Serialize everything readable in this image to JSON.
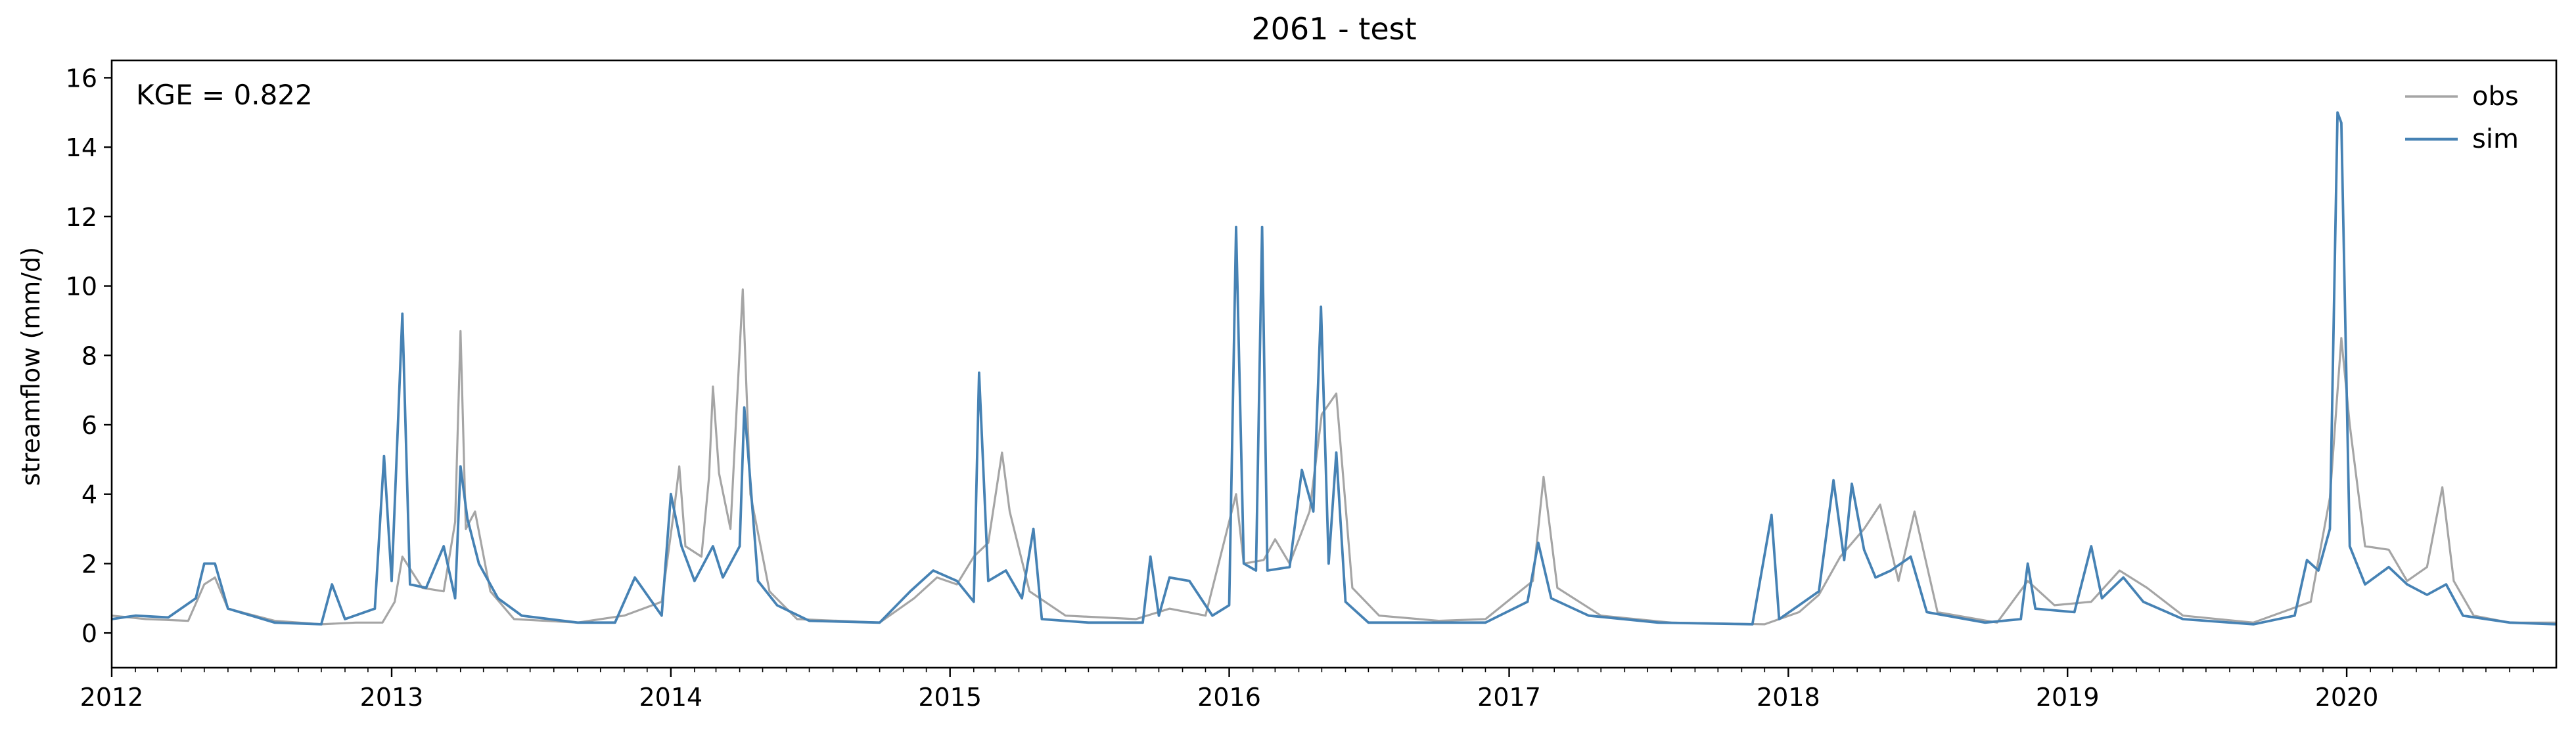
{
  "chart_data": {
    "type": "line",
    "title": "2061 - test",
    "xlabel": "",
    "ylabel": "streamflow (mm/d)",
    "annotation": "KGE = 0.822",
    "xlim": [
      "2012-01-01",
      "2020-10-01"
    ],
    "ylim": [
      -1,
      16.5
    ],
    "x_ticks": [
      "2012",
      "2013",
      "2014",
      "2015",
      "2016",
      "2017",
      "2018",
      "2019",
      "2020"
    ],
    "y_ticks": [
      0,
      2,
      4,
      6,
      8,
      10,
      12,
      14,
      16
    ],
    "grid": false,
    "legend_position": "top-right",
    "series": [
      {
        "name": "obs",
        "color": "#a5a5a5",
        "points": [
          [
            "2012-01-01",
            0.5
          ],
          [
            "2012-02-15",
            0.4
          ],
          [
            "2012-04-10",
            0.35
          ],
          [
            "2012-05-01",
            1.4
          ],
          [
            "2012-05-15",
            1.6
          ],
          [
            "2012-06-01",
            0.7
          ],
          [
            "2012-08-01",
            0.35
          ],
          [
            "2012-10-01",
            0.25
          ],
          [
            "2012-11-15",
            0.3
          ],
          [
            "2012-12-20",
            0.3
          ],
          [
            "2013-01-05",
            0.9
          ],
          [
            "2013-01-15",
            2.2
          ],
          [
            "2013-02-10",
            1.3
          ],
          [
            "2013-03-10",
            1.2
          ],
          [
            "2013-03-25",
            3.2
          ],
          [
            "2013-04-01",
            8.7
          ],
          [
            "2013-04-08",
            3.0
          ],
          [
            "2013-04-20",
            3.5
          ],
          [
            "2013-05-10",
            1.2
          ],
          [
            "2013-06-10",
            0.4
          ],
          [
            "2013-09-01",
            0.3
          ],
          [
            "2013-11-01",
            0.5
          ],
          [
            "2013-12-20",
            0.9
          ],
          [
            "2014-01-05",
            3.5
          ],
          [
            "2014-01-12",
            4.8
          ],
          [
            "2014-01-20",
            2.5
          ],
          [
            "2014-02-10",
            2.2
          ],
          [
            "2014-02-20",
            4.5
          ],
          [
            "2014-02-25",
            7.1
          ],
          [
            "2014-03-05",
            4.6
          ],
          [
            "2014-03-20",
            3.0
          ],
          [
            "2014-04-05",
            9.9
          ],
          [
            "2014-04-15",
            4.0
          ],
          [
            "2014-05-10",
            1.2
          ],
          [
            "2014-06-15",
            0.4
          ],
          [
            "2014-10-01",
            0.3
          ],
          [
            "2014-11-15",
            1.0
          ],
          [
            "2014-12-15",
            1.6
          ],
          [
            "2015-01-10",
            1.4
          ],
          [
            "2015-02-01",
            2.2
          ],
          [
            "2015-02-20",
            2.6
          ],
          [
            "2015-03-10",
            5.2
          ],
          [
            "2015-03-20",
            3.5
          ],
          [
            "2015-04-15",
            1.2
          ],
          [
            "2015-06-01",
            0.5
          ],
          [
            "2015-09-01",
            0.4
          ],
          [
            "2015-10-15",
            0.7
          ],
          [
            "2015-12-01",
            0.5
          ],
          [
            "2016-01-10",
            4.0
          ],
          [
            "2016-01-20",
            2.0
          ],
          [
            "2016-02-15",
            2.1
          ],
          [
            "2016-03-01",
            2.7
          ],
          [
            "2016-03-20",
            2.0
          ],
          [
            "2016-04-15",
            3.5
          ],
          [
            "2016-05-01",
            6.3
          ],
          [
            "2016-05-20",
            6.9
          ],
          [
            "2016-06-10",
            1.3
          ],
          [
            "2016-07-15",
            0.5
          ],
          [
            "2016-10-01",
            0.35
          ],
          [
            "2016-12-01",
            0.4
          ],
          [
            "2017-02-01",
            1.5
          ],
          [
            "2017-02-15",
            4.5
          ],
          [
            "2017-03-05",
            1.3
          ],
          [
            "2017-05-01",
            0.5
          ],
          [
            "2017-08-01",
            0.3
          ],
          [
            "2017-12-01",
            0.25
          ],
          [
            "2018-01-15",
            0.6
          ],
          [
            "2018-02-10",
            1.1
          ],
          [
            "2018-03-10",
            2.2
          ],
          [
            "2018-04-10",
            3.0
          ],
          [
            "2018-05-01",
            3.7
          ],
          [
            "2018-05-25",
            1.5
          ],
          [
            "2018-06-15",
            3.5
          ],
          [
            "2018-07-15",
            0.6
          ],
          [
            "2018-10-01",
            0.3
          ],
          [
            "2018-11-10",
            1.5
          ],
          [
            "2018-12-15",
            0.8
          ],
          [
            "2019-02-01",
            0.9
          ],
          [
            "2019-03-10",
            1.8
          ],
          [
            "2019-04-15",
            1.3
          ],
          [
            "2019-06-01",
            0.5
          ],
          [
            "2019-09-01",
            0.3
          ],
          [
            "2019-11-15",
            0.9
          ],
          [
            "2019-12-10",
            3.9
          ],
          [
            "2019-12-25",
            8.5
          ],
          [
            "2020-01-05",
            6.0
          ],
          [
            "2020-01-25",
            2.5
          ],
          [
            "2020-02-25",
            2.4
          ],
          [
            "2020-03-20",
            1.5
          ],
          [
            "2020-04-15",
            1.9
          ],
          [
            "2020-05-05",
            4.2
          ],
          [
            "2020-05-20",
            1.5
          ],
          [
            "2020-06-15",
            0.5
          ],
          [
            "2020-08-01",
            0.3
          ],
          [
            "2020-10-01",
            0.3
          ]
        ]
      },
      {
        "name": "sim",
        "color": "#4682b4",
        "points": [
          [
            "2012-01-01",
            0.4
          ],
          [
            "2012-02-01",
            0.5
          ],
          [
            "2012-03-15",
            0.45
          ],
          [
            "2012-04-20",
            1.0
          ],
          [
            "2012-05-01",
            2.0
          ],
          [
            "2012-05-15",
            2.0
          ],
          [
            "2012-06-01",
            0.7
          ],
          [
            "2012-08-01",
            0.3
          ],
          [
            "2012-10-01",
            0.25
          ],
          [
            "2012-10-15",
            1.4
          ],
          [
            "2012-11-01",
            0.4
          ],
          [
            "2012-12-10",
            0.7
          ],
          [
            "2012-12-22",
            5.1
          ],
          [
            "2013-01-01",
            1.5
          ],
          [
            "2013-01-15",
            9.2
          ],
          [
            "2013-01-25",
            1.4
          ],
          [
            "2013-02-15",
            1.3
          ],
          [
            "2013-03-10",
            2.5
          ],
          [
            "2013-03-25",
            1.0
          ],
          [
            "2013-04-01",
            4.8
          ],
          [
            "2013-04-10",
            3.3
          ],
          [
            "2013-04-25",
            2.0
          ],
          [
            "2013-05-20",
            1.0
          ],
          [
            "2013-06-20",
            0.5
          ],
          [
            "2013-09-01",
            0.3
          ],
          [
            "2013-10-20",
            0.3
          ],
          [
            "2013-11-15",
            1.6
          ],
          [
            "2013-12-20",
            0.5
          ],
          [
            "2014-01-01",
            4.0
          ],
          [
            "2014-01-15",
            2.5
          ],
          [
            "2014-02-01",
            1.5
          ],
          [
            "2014-02-25",
            2.5
          ],
          [
            "2014-03-10",
            1.6
          ],
          [
            "2014-04-01",
            2.5
          ],
          [
            "2014-04-07",
            6.5
          ],
          [
            "2014-04-12",
            5.2
          ],
          [
            "2014-04-25",
            1.5
          ],
          [
            "2014-05-20",
            0.8
          ],
          [
            "2014-07-01",
            0.35
          ],
          [
            "2014-10-01",
            0.3
          ],
          [
            "2014-11-10",
            1.2
          ],
          [
            "2014-12-10",
            1.8
          ],
          [
            "2015-01-10",
            1.5
          ],
          [
            "2015-02-01",
            0.9
          ],
          [
            "2015-02-08",
            7.5
          ],
          [
            "2015-02-20",
            1.5
          ],
          [
            "2015-03-15",
            1.8
          ],
          [
            "2015-04-05",
            1.0
          ],
          [
            "2015-04-20",
            3.0
          ],
          [
            "2015-05-01",
            0.4
          ],
          [
            "2015-07-01",
            0.3
          ],
          [
            "2015-09-10",
            0.3
          ],
          [
            "2015-09-20",
            2.2
          ],
          [
            "2015-10-01",
            0.5
          ],
          [
            "2015-10-15",
            1.6
          ],
          [
            "2015-11-10",
            1.5
          ],
          [
            "2015-12-10",
            0.5
          ],
          [
            "2016-01-01",
            0.8
          ],
          [
            "2016-01-10",
            11.7
          ],
          [
            "2016-01-20",
            2.0
          ],
          [
            "2016-02-05",
            1.8
          ],
          [
            "2016-02-13",
            11.7
          ],
          [
            "2016-02-20",
            1.8
          ],
          [
            "2016-03-20",
            1.9
          ],
          [
            "2016-04-05",
            4.7
          ],
          [
            "2016-04-20",
            3.5
          ],
          [
            "2016-04-30",
            9.4
          ],
          [
            "2016-05-10",
            2.0
          ],
          [
            "2016-05-20",
            5.2
          ],
          [
            "2016-06-01",
            0.9
          ],
          [
            "2016-07-01",
            0.3
          ],
          [
            "2016-09-15",
            0.3
          ],
          [
            "2016-12-01",
            0.3
          ],
          [
            "2017-01-25",
            0.9
          ],
          [
            "2017-02-08",
            2.6
          ],
          [
            "2017-02-25",
            1.0
          ],
          [
            "2017-04-15",
            0.5
          ],
          [
            "2017-07-15",
            0.3
          ],
          [
            "2017-11-15",
            0.25
          ],
          [
            "2017-12-10",
            3.4
          ],
          [
            "2017-12-20",
            0.4
          ],
          [
            "2018-01-15",
            0.8
          ],
          [
            "2018-02-10",
            1.2
          ],
          [
            "2018-03-01",
            4.4
          ],
          [
            "2018-03-15",
            2.1
          ],
          [
            "2018-03-25",
            4.3
          ],
          [
            "2018-04-10",
            2.4
          ],
          [
            "2018-04-25",
            1.6
          ],
          [
            "2018-05-15",
            1.8
          ],
          [
            "2018-06-10",
            2.2
          ],
          [
            "2018-07-01",
            0.6
          ],
          [
            "2018-09-15",
            0.3
          ],
          [
            "2018-11-01",
            0.4
          ],
          [
            "2018-11-10",
            2.0
          ],
          [
            "2018-11-20",
            0.7
          ],
          [
            "2019-01-10",
            0.6
          ],
          [
            "2019-02-01",
            2.5
          ],
          [
            "2019-02-15",
            1.0
          ],
          [
            "2019-03-15",
            1.6
          ],
          [
            "2019-04-10",
            0.9
          ],
          [
            "2019-06-01",
            0.4
          ],
          [
            "2019-09-01",
            0.25
          ],
          [
            "2019-10-25",
            0.5
          ],
          [
            "2019-11-10",
            2.1
          ],
          [
            "2019-11-25",
            1.8
          ],
          [
            "2019-12-10",
            3.0
          ],
          [
            "2019-12-20",
            15.0
          ],
          [
            "2019-12-25",
            14.7
          ],
          [
            "2020-01-05",
            2.5
          ],
          [
            "2020-01-25",
            1.4
          ],
          [
            "2020-02-25",
            1.9
          ],
          [
            "2020-03-20",
            1.4
          ],
          [
            "2020-04-15",
            1.1
          ],
          [
            "2020-05-10",
            1.4
          ],
          [
            "2020-06-01",
            0.5
          ],
          [
            "2020-08-01",
            0.3
          ],
          [
            "2020-10-01",
            0.25
          ]
        ]
      }
    ]
  }
}
